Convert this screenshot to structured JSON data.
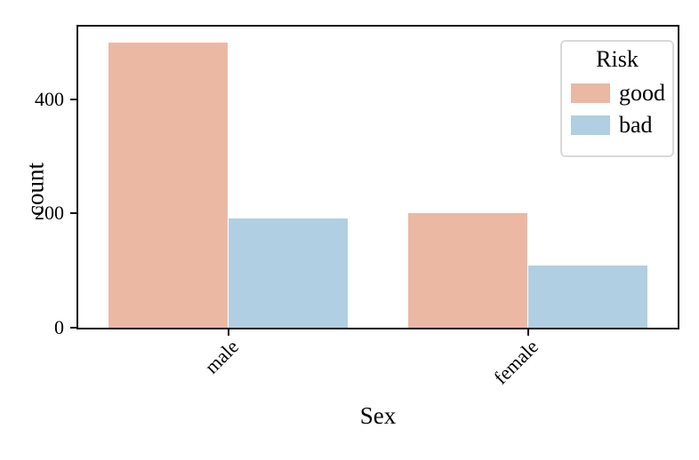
{
  "figure": {
    "background": "#ffffff",
    "spine_color": "#111111",
    "tick_color": "#111111",
    "text_color": "#000000"
  },
  "chart_data": {
    "type": "bar",
    "title": "",
    "xlabel": "Sex",
    "ylabel": "count",
    "categories": [
      "male",
      "female"
    ],
    "series": [
      {
        "name": "good",
        "color": "#ebb8a4",
        "values": [
          499,
          201
        ]
      },
      {
        "name": "bad",
        "color": "#b1cfe2",
        "values": [
          191,
          109
        ]
      }
    ],
    "yticks": [
      0,
      200,
      400
    ],
    "ylim": [
      0,
      527
    ],
    "grid": false,
    "xtick_rotation_deg": 45,
    "group_width_fraction": 0.8,
    "legend": {
      "title": "Risk",
      "position": "upper right",
      "entries": [
        {
          "label": "good",
          "color": "#ebb8a4"
        },
        {
          "label": "bad",
          "color": "#b1cfe2"
        }
      ]
    }
  }
}
